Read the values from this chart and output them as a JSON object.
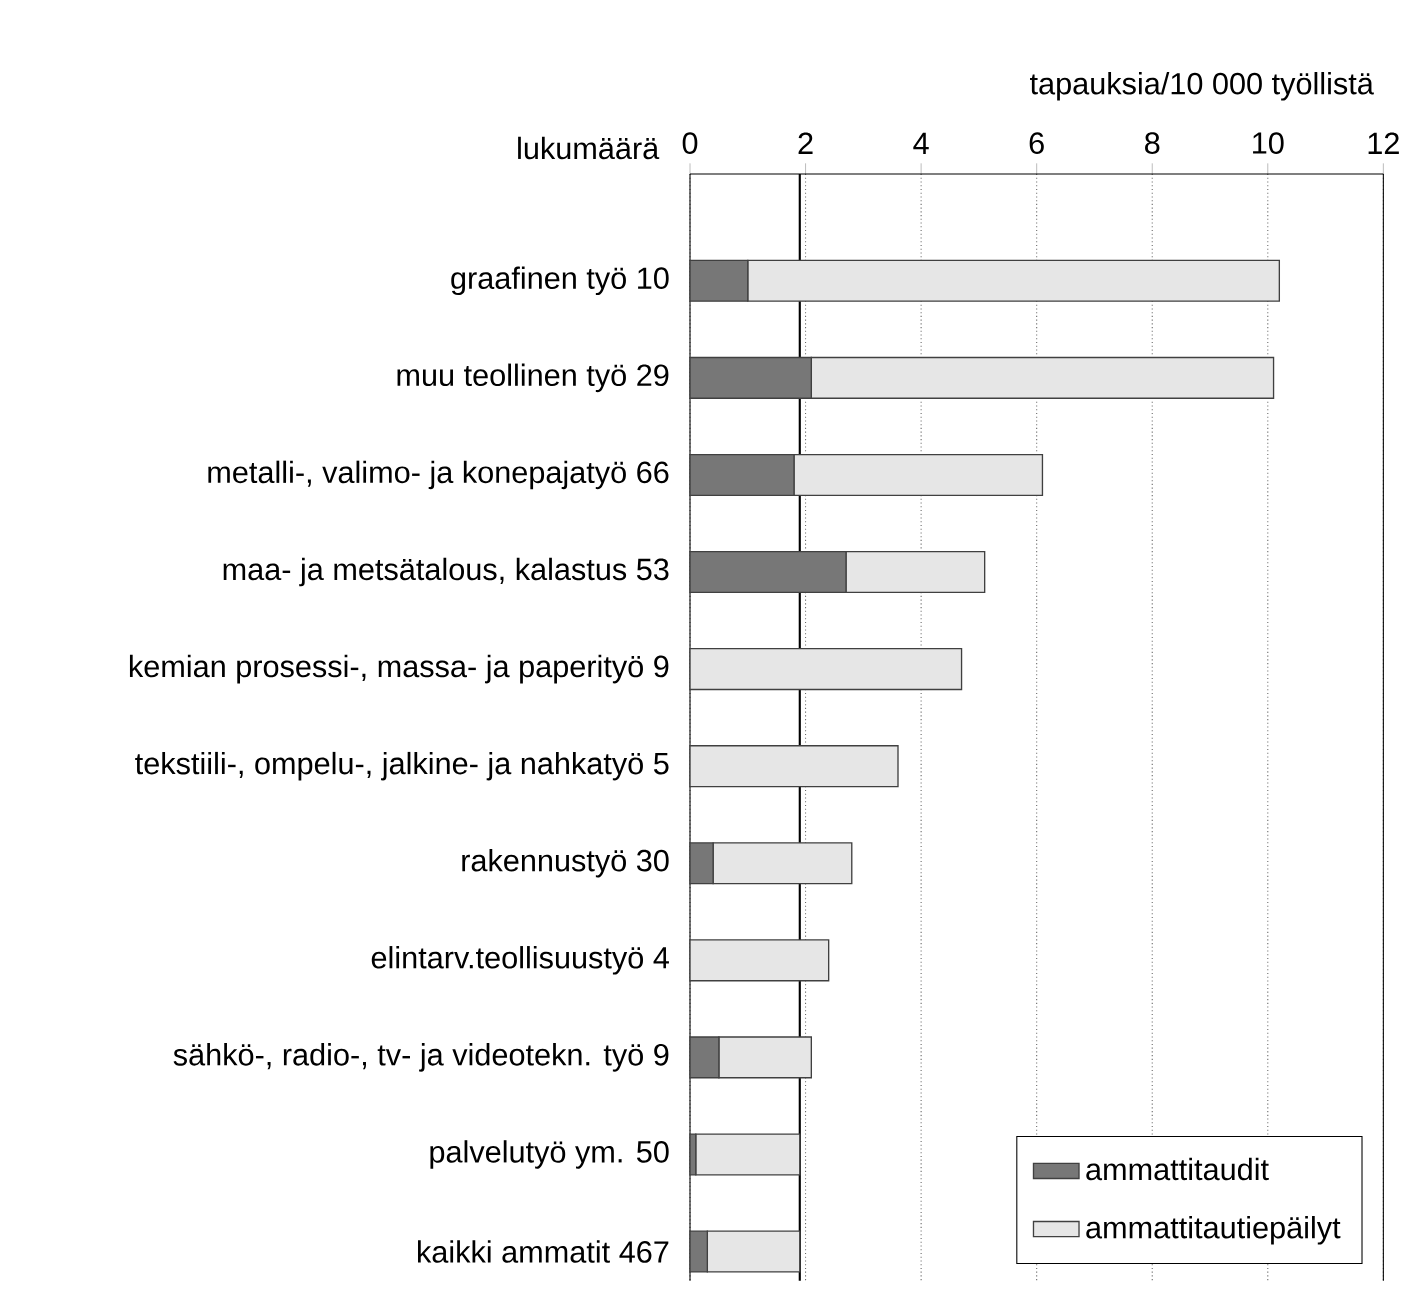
{
  "chart_data": {
    "type": "bar",
    "orientation": "horizontal",
    "stacked": true,
    "xlabel": "tapauksia/10 000 työllistä",
    "annotations": [
      "lukumäärä"
    ],
    "categories": [
      "graafinen työ 10",
      "muu teollinen työ 29",
      "metalli-, valimo- ja konepajatyö 66",
      "maa- ja metsätalous, kalastus 53",
      "kemian prosessi-, massa- ja paperityö 9",
      "tekstiili-, ompelu-, jalkine- ja nahkatyö 5",
      "rakennustyö 30",
      "elintarv.teollisuustyö 4",
      "sähkö-, radio-, tv- ja videotekn. työ 9",
      "palvelutyö ym. 50",
      "kaikki ammatit 467"
    ],
    "series": [
      {
        "name": "ammattitaudit",
        "color": "#777777",
        "values": [
          1.0,
          2.1,
          1.8,
          2.7,
          0,
          0,
          0.4,
          0,
          0.5,
          0.1,
          0.3
        ]
      },
      {
        "name": "ammattitautiepäilyt",
        "color": "#e6e6e6",
        "values": [
          9.2,
          8.0,
          4.3,
          2.4,
          4.7,
          3.6,
          2.4,
          2.4,
          1.6,
          1.8,
          1.6
        ]
      }
    ],
    "xlim": [
      0,
      12
    ],
    "xticks": [
      0,
      2,
      4,
      6,
      8,
      10,
      12
    ],
    "grid": "x",
    "legend": "bottom right",
    "ref_lines": [
      {
        "axis": "x",
        "value": 1.9,
        "color": "#000000"
      }
    ]
  }
}
